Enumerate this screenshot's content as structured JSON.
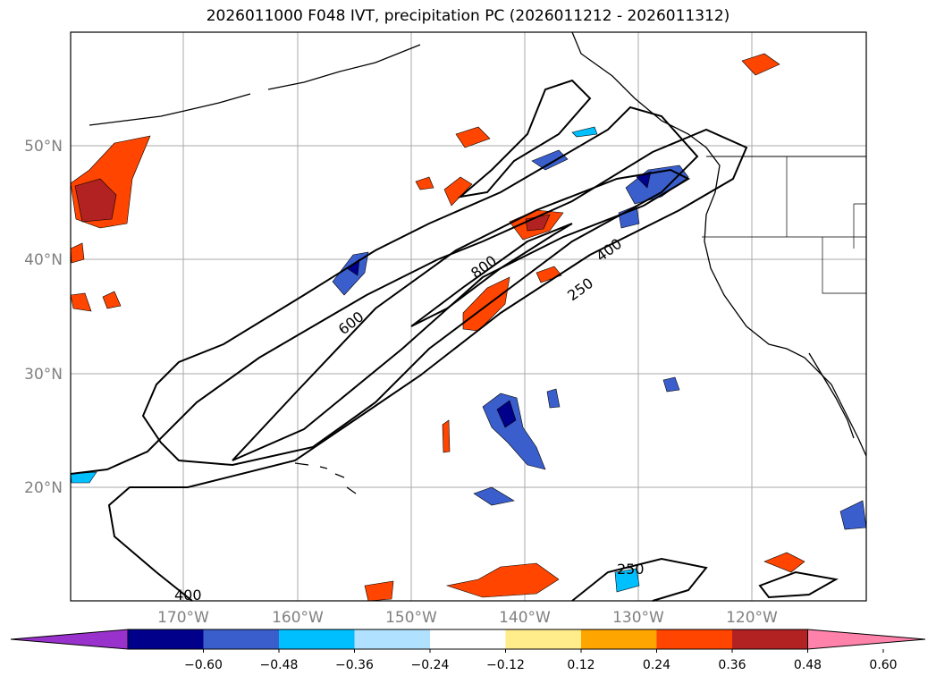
{
  "title": "2026011000 F048 IVT, precipitation PC (2026011212 - 2026011312)",
  "lat_labels": [
    "50°N",
    "40°N",
    "30°N",
    "20°N"
  ],
  "lon_labels": [
    "170°W",
    "160°W",
    "150°W",
    "140°W",
    "130°W",
    "120°W"
  ],
  "contour_labels": [
    "800",
    "600",
    "400",
    "250",
    "250",
    "400"
  ],
  "colorbar": {
    "ticks": [
      "−0.60",
      "−0.48",
      "−0.36",
      "−0.24",
      "−0.12",
      "0.12",
      "0.24",
      "0.36",
      "0.48",
      "0.60"
    ],
    "colors": {
      "under": "#9932cc",
      "bins": [
        "#00008b",
        "#3a5fcd",
        "#00bfff",
        "#b0e2ff",
        "#ffffff",
        "#ffec8b",
        "#ffa500",
        "#ff4500",
        "#b22222"
      ],
      "over": "#ff82ab"
    }
  },
  "map": {
    "projection": "plate-carree",
    "extent": {
      "lon": [
        -180,
        -110
      ],
      "lat": [
        10,
        60
      ]
    },
    "gridlines": true
  }
}
